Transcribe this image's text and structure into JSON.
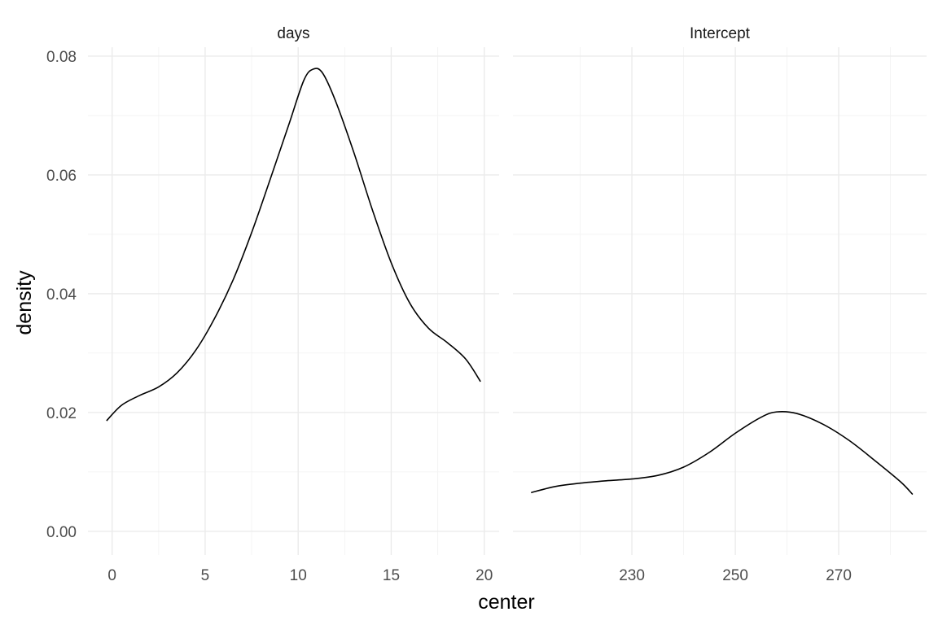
{
  "chart_data": {
    "type": "line",
    "xlabel": "center",
    "ylabel": "density",
    "grid": true,
    "y_ticks": [
      0.0,
      0.02,
      0.04,
      0.06,
      0.08
    ],
    "y_tick_labels": [
      "0.00",
      "0.02",
      "0.04",
      "0.06",
      "0.08"
    ],
    "ylim": [
      -0.004,
      0.0815
    ],
    "panels": [
      {
        "strip": "days",
        "xlim": [
          -1.3,
          20.8
        ],
        "x_ticks": [
          0,
          5,
          10,
          15,
          20
        ],
        "x_tick_labels": [
          "0",
          "5",
          "10",
          "15",
          "20"
        ],
        "x_minor": [
          2.5,
          7.5,
          12.5,
          17.5
        ],
        "series": [
          {
            "x": [
              -0.3,
              0.5,
              1.5,
              2.5,
              3.5,
              4.5,
              5.5,
              6.5,
              7.5,
              8.5,
              9.5,
              10.3,
              10.8,
              11.3,
              12.0,
              13.0,
              14.0,
              15.0,
              16.0,
              17.0,
              18.0,
              19.0,
              19.8
            ],
            "y": [
              0.0186,
              0.0212,
              0.0229,
              0.0243,
              0.0267,
              0.0305,
              0.0358,
              0.0423,
              0.0503,
              0.0593,
              0.0685,
              0.0759,
              0.0778,
              0.0772,
              0.0725,
              0.0637,
              0.054,
              0.0452,
              0.0384,
              0.0342,
              0.0318,
              0.029,
              0.0252
            ]
          }
        ]
      },
      {
        "strip": "Intercept",
        "xlim": [
          207,
          287
        ],
        "x_ticks": [
          230,
          250,
          270
        ],
        "x_tick_labels": [
          "230",
          "250",
          "270"
        ],
        "x_minor": [
          220,
          240,
          260,
          280
        ],
        "series": [
          {
            "x": [
              210.5,
              215,
              220,
              225,
              230,
              235,
              240,
              245,
              250,
              255,
              258,
              262,
              267,
              272,
              277,
              282,
              284.3
            ],
            "y": [
              0.0065,
              0.0075,
              0.0081,
              0.0085,
              0.0088,
              0.0094,
              0.0108,
              0.0133,
              0.0165,
              0.0192,
              0.0201,
              0.0198,
              0.018,
              0.0153,
              0.0119,
              0.0083,
              0.0062
            ]
          }
        ]
      }
    ]
  }
}
